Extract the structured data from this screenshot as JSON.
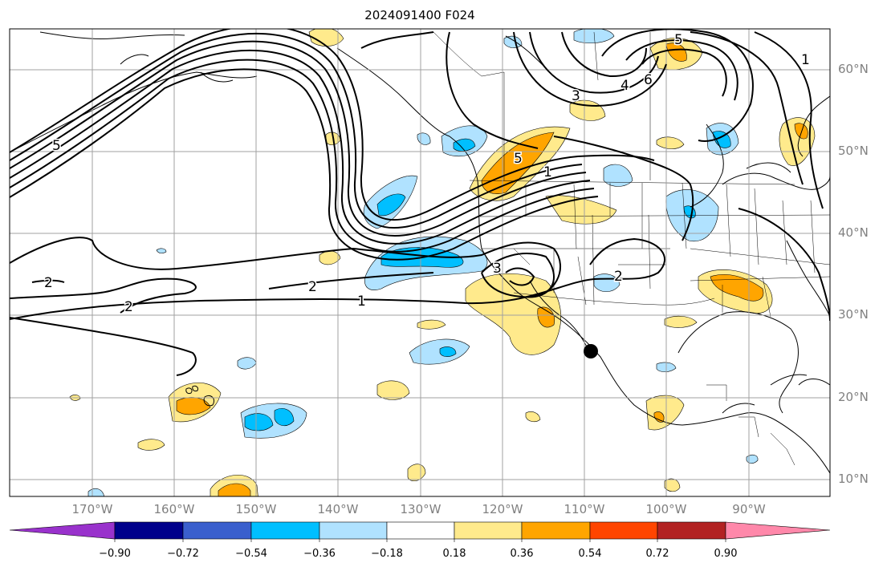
{
  "title": "2024091400 F024",
  "latitude_labels": [
    "60°N",
    "50°N",
    "40°N",
    "30°N",
    "20°N",
    "10°N"
  ],
  "longitude_labels": [
    "170°W",
    "160°W",
    "150°W",
    "140°W",
    "130°W",
    "120°W",
    "110°W",
    "100°W",
    "90°W"
  ],
  "colorbar": {
    "tick_labels": [
      "−0.90",
      "−0.72",
      "−0.54",
      "−0.36",
      "−0.18",
      "0.18",
      "0.36",
      "0.54",
      "0.72",
      "0.90"
    ],
    "colors": [
      "#9932cc",
      "#00008b",
      "#3a5fcd",
      "#00bfff",
      "#b0e2ff",
      "#ffffff",
      "#ffea8c",
      "#ffa500",
      "#ff4500",
      "#b22222",
      "#ff88aa"
    ]
  },
  "contour_labels": [
    "1",
    "2",
    "2",
    "2",
    "3",
    "3",
    "4",
    "5",
    "6",
    "5",
    "1",
    "1",
    "2",
    "5"
  ],
  "map_features": {
    "contour_color": "#000000",
    "shading_positive": [
      "#ffea8c",
      "#ffa500"
    ],
    "shading_negative": [
      "#b0e2ff",
      "#00bfff"
    ],
    "grid": true,
    "marker": "black-dot"
  }
}
